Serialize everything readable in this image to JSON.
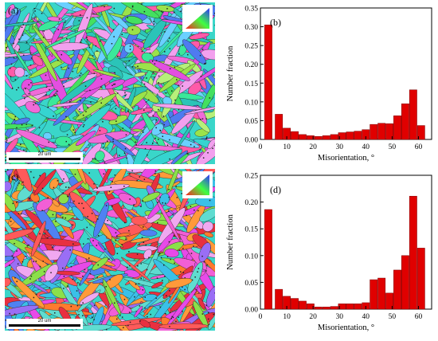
{
  "maps": [
    {
      "letter": "(a)",
      "scale_label": "20 um"
    },
    {
      "letter": "(c)",
      "scale_label": "20 um"
    }
  ],
  "colors": {
    "bar_fill": "#e00000",
    "bar_stroke": "#7a0000"
  },
  "chart_data": [
    {
      "type": "bar",
      "panel_label": "(b)",
      "x": [
        3,
        7,
        10,
        13,
        16,
        19,
        22,
        25,
        28,
        31,
        34,
        37,
        40,
        43,
        46,
        49,
        52,
        55,
        58,
        61
      ],
      "values": [
        0.305,
        0.067,
        0.03,
        0.021,
        0.013,
        0.01,
        0.008,
        0.01,
        0.013,
        0.018,
        0.02,
        0.022,
        0.026,
        0.04,
        0.043,
        0.042,
        0.063,
        0.095,
        0.132,
        0.037
      ],
      "xlabel": "Misorientation, °",
      "ylabel": "Number fraction",
      "xlim": [
        0,
        65
      ],
      "ylim": [
        0,
        0.35
      ],
      "xticks": [
        0,
        10,
        20,
        30,
        40,
        50,
        60
      ],
      "yticks": [
        "0.00",
        "0.05",
        "0.10",
        "0.15",
        "0.20",
        "0.25",
        "0.30",
        "0.35"
      ]
    },
    {
      "type": "bar",
      "panel_label": "(d)",
      "x": [
        3,
        7,
        10,
        13,
        16,
        19,
        22,
        25,
        28,
        31,
        34,
        37,
        40,
        43,
        46,
        49,
        52,
        55,
        58,
        61
      ],
      "values": [
        0.186,
        0.037,
        0.024,
        0.02,
        0.015,
        0.01,
        0.004,
        0.004,
        0.005,
        0.01,
        0.01,
        0.01,
        0.012,
        0.055,
        0.058,
        0.03,
        0.073,
        0.1,
        0.211,
        0.114
      ],
      "xlabel": "Misorientation, °",
      "ylabel": "Number fraction",
      "xlim": [
        0,
        65
      ],
      "ylim": [
        0,
        0.25
      ],
      "xticks": [
        0,
        10,
        20,
        30,
        40,
        50,
        60
      ],
      "yticks": [
        "0.00",
        "0.05",
        "0.10",
        "0.15",
        "0.20",
        "0.25"
      ]
    }
  ]
}
